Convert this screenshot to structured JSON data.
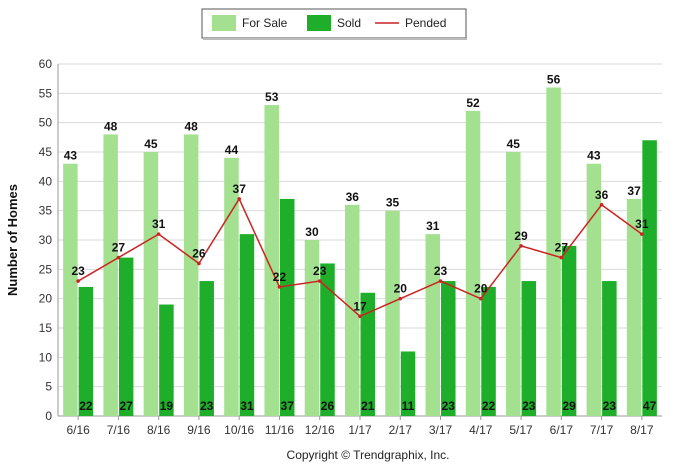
{
  "chart_data": {
    "type": "bar",
    "categories": [
      "6/16",
      "7/16",
      "8/16",
      "9/16",
      "10/16",
      "11/16",
      "12/16",
      "1/17",
      "2/17",
      "3/17",
      "4/17",
      "5/17",
      "6/17",
      "7/17",
      "8/17"
    ],
    "series": [
      {
        "name": "For Sale",
        "kind": "bar",
        "color": "#a3e08f",
        "values": [
          43,
          48,
          45,
          48,
          44,
          53,
          30,
          36,
          35,
          31,
          52,
          45,
          56,
          43,
          37
        ]
      },
      {
        "name": "Sold",
        "kind": "bar",
        "color": "#1fae2a",
        "values": [
          22,
          27,
          19,
          23,
          31,
          37,
          26,
          21,
          11,
          23,
          22,
          23,
          29,
          23,
          47
        ]
      },
      {
        "name": "Pended",
        "kind": "line",
        "color": "#cc2222",
        "values": [
          23,
          27,
          31,
          26,
          37,
          22,
          23,
          17,
          20,
          23,
          20,
          29,
          27,
          36,
          31
        ]
      }
    ],
    "ylabel": "Number of Homes",
    "xlabel": "",
    "ylim": [
      0,
      60
    ],
    "yticks": [
      0,
      5,
      10,
      15,
      20,
      25,
      30,
      35,
      40,
      45,
      50,
      55,
      60
    ],
    "grid": true,
    "legend_position": "top-center"
  },
  "footer": "Copyright © Trendgraphix, Inc."
}
